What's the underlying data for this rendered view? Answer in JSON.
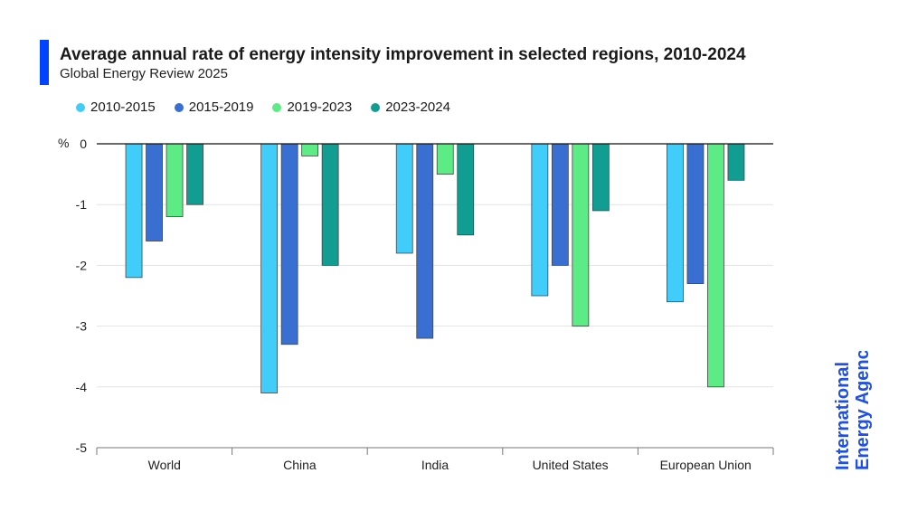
{
  "header": {
    "title": "Average annual rate of energy intensity improvement in selected regions, 2010-2024",
    "subtitle": "Global Energy Review 2025"
  },
  "brand": {
    "line1": "International",
    "line2": "Energy Agency",
    "color": "#1f4fe8"
  },
  "chart_data": {
    "type": "bar",
    "title": "Average annual rate of energy intensity improvement in selected regions, 2010-2024",
    "subtitle": "Global Energy Review 2025",
    "ylabel": "%",
    "ylim": [
      -5,
      0
    ],
    "yticks": [
      0,
      -1,
      -2,
      -3,
      -4,
      -5
    ],
    "grid": true,
    "legend": "top-left",
    "categories": [
      "World",
      "China",
      "India",
      "United States",
      "European Union"
    ],
    "series": [
      {
        "name": "2010-2015",
        "color": "#41cdfa",
        "values": [
          -2.2,
          -4.1,
          -1.8,
          -2.5,
          -2.6
        ]
      },
      {
        "name": "2015-2019",
        "color": "#3a6fd2",
        "values": [
          -1.6,
          -3.3,
          -3.2,
          -2.0,
          -2.3
        ]
      },
      {
        "name": "2019-2023",
        "color": "#5deb85",
        "values": [
          -1.2,
          -0.2,
          -0.5,
          -3.0,
          -4.0
        ]
      },
      {
        "name": "2023-2024",
        "color": "#129d92",
        "values": [
          -1.0,
          -2.0,
          -1.5,
          -1.1,
          -0.6
        ]
      }
    ]
  }
}
